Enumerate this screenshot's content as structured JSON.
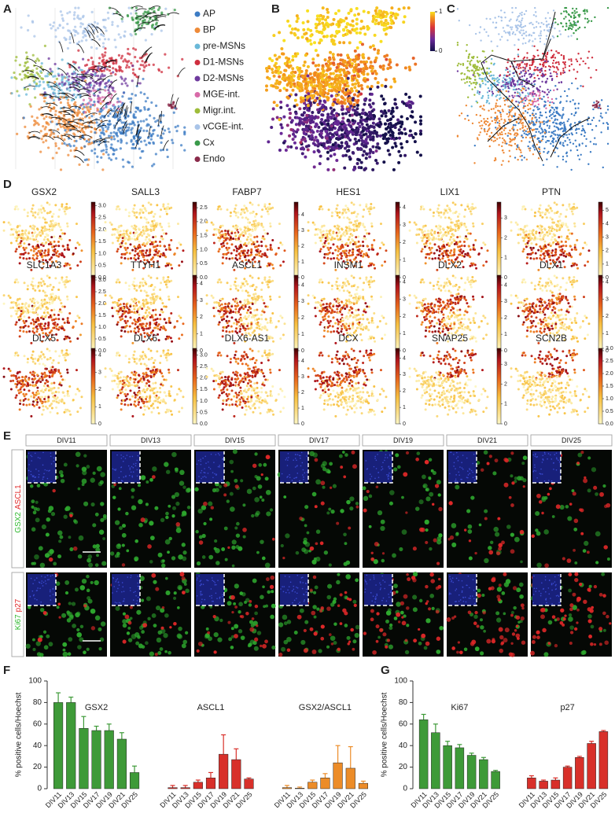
{
  "panels": {
    "a": {
      "label": "A",
      "legend": [
        {
          "name": "AP",
          "color": "#3d7cc4"
        },
        {
          "name": "BP",
          "color": "#ee8a38"
        },
        {
          "name": "pre-MSNs",
          "color": "#6ab8d8"
        },
        {
          "name": "D1-MSNs",
          "color": "#cf2e3e"
        },
        {
          "name": "D2-MSNs",
          "color": "#6f3a9e"
        },
        {
          "name": "MGE-int.",
          "color": "#d86aa8"
        },
        {
          "name": "Migr.int.",
          "color": "#9ebc3a"
        },
        {
          "name": "vCGE-int.",
          "color": "#a9c4e8"
        },
        {
          "name": "Cx",
          "color": "#3a9a4a"
        },
        {
          "name": "Endo",
          "color": "#8a2a4a"
        }
      ]
    },
    "b": {
      "label": "B",
      "colorbar": {
        "lim": [
          0,
          1
        ],
        "ticks": [
          0,
          1
        ]
      }
    },
    "c": {
      "label": "C"
    },
    "d": {
      "label": "D",
      "genes": [
        {
          "name": "GSX2",
          "lim": [
            0,
            3.15
          ],
          "ticks": [
            {
              "value": 0,
              "label": "0.0"
            },
            {
              "value": 0.5,
              "label": "0.5"
            },
            {
              "value": 1,
              "label": "1.0"
            },
            {
              "value": 1.5,
              "label": "1.5"
            },
            {
              "value": 2,
              "label": "2.0"
            },
            {
              "value": 2.5,
              "label": "2.5"
            },
            {
              "value": 3,
              "label": "3.0"
            }
          ]
        },
        {
          "name": "SALL3",
          "lim": [
            0,
            2.7
          ],
          "ticks": [
            {
              "value": 0,
              "label": "0.0"
            },
            {
              "value": 0.5,
              "label": "0.5"
            },
            {
              "value": 1,
              "label": "1.0"
            },
            {
              "value": 1.5,
              "label": "1.5"
            },
            {
              "value": 2,
              "label": "2.0"
            },
            {
              "value": 2.5,
              "label": "2.5"
            }
          ]
        },
        {
          "name": "FABP7",
          "lim": [
            0,
            4.8
          ],
          "ticks": [
            0,
            1,
            2,
            3,
            4
          ]
        },
        {
          "name": "HES1",
          "lim": [
            0,
            4.3
          ],
          "ticks": [
            0,
            1,
            2,
            3,
            4
          ]
        },
        {
          "name": "LIX1",
          "lim": [
            0,
            3.8
          ],
          "ticks": [
            0,
            1,
            2,
            3
          ]
        },
        {
          "name": "PTN",
          "lim": [
            0,
            5.6
          ],
          "ticks": [
            0,
            1,
            2,
            3,
            4,
            5
          ]
        },
        {
          "name": "SLC1A3",
          "lim": [
            0,
            3.2
          ],
          "ticks": [
            {
              "value": 0,
              "label": "0.0"
            },
            {
              "value": 0.5,
              "label": "0.5"
            },
            {
              "value": 1,
              "label": "1.0"
            },
            {
              "value": 1.5,
              "label": "1.5"
            },
            {
              "value": 2,
              "label": "2.0"
            },
            {
              "value": 2.5,
              "label": "2.5"
            },
            {
              "value": 3,
              "label": "3.0"
            }
          ]
        },
        {
          "name": "TTYH1",
          "lim": [
            0,
            4.5
          ],
          "ticks": [
            0,
            1,
            2,
            3,
            4
          ]
        },
        {
          "name": "ASCL1",
          "lim": [
            0,
            4.6
          ],
          "ticks": [
            0,
            1,
            2,
            3,
            4
          ]
        },
        {
          "name": "INSM1",
          "lim": [
            0,
            4.4
          ],
          "ticks": [
            0,
            1,
            2,
            3,
            4
          ]
        },
        {
          "name": "DLX2",
          "lim": [
            0,
            4.6
          ],
          "ticks": [
            0,
            1,
            2,
            3,
            4
          ]
        },
        {
          "name": "DLX1",
          "lim": [
            0,
            4.4
          ],
          "ticks": [
            0,
            1,
            2,
            3,
            4
          ]
        },
        {
          "name": "DLX5",
          "lim": [
            0,
            4.4
          ],
          "ticks": [
            0,
            1,
            2,
            3,
            4
          ]
        },
        {
          "name": "DLX6",
          "lim": [
            0,
            3.3
          ],
          "ticks": [
            {
              "value": 0,
              "label": "0.0"
            },
            {
              "value": 0.5,
              "label": "0.5"
            },
            {
              "value": 1,
              "label": "1.0"
            },
            {
              "value": 1.5,
              "label": "1.5"
            },
            {
              "value": 2,
              "label": "2.0"
            },
            {
              "value": 2.5,
              "label": "2.5"
            },
            {
              "value": 3,
              "label": "3.0"
            }
          ]
        },
        {
          "name": "DLX6-AS1",
          "lim": [
            0,
            4.8
          ],
          "ticks": [
            0,
            1,
            2,
            3,
            4
          ]
        },
        {
          "name": "DCX",
          "lim": [
            0,
            4.6
          ],
          "ticks": [
            0,
            1,
            2,
            3,
            4
          ]
        },
        {
          "name": "SNAP25",
          "lim": [
            0,
            3.8
          ],
          "ticks": [
            0,
            1,
            2,
            3
          ]
        },
        {
          "name": "SCN2B",
          "lim": [
            0,
            3.0
          ],
          "ticks": [
            {
              "value": 0,
              "label": "0.0"
            },
            {
              "value": 0.5,
              "label": "0.5"
            },
            {
              "value": 1,
              "label": "1.0"
            },
            {
              "value": 1.5,
              "label": "1.5"
            },
            {
              "value": 2,
              "label": "2.0"
            },
            {
              "value": 2.5,
              "label": "2.5"
            },
            {
              "value": 3,
              "label": "3.0"
            }
          ]
        }
      ]
    },
    "e": {
      "label": "E",
      "columns": [
        "DIV11",
        "DIV13",
        "DIV15",
        "DIV17",
        "DIV19",
        "DIV21",
        "DIV25"
      ],
      "rows": [
        {
          "stains": [
            {
              "name": "GSX2",
              "color": "#2fb82f"
            },
            {
              "name": "ASCL1",
              "color": "#e02828"
            }
          ]
        },
        {
          "stains": [
            {
              "name": "Ki67",
              "color": "#2fb82f"
            },
            {
              "name": "p27",
              "color": "#e02828"
            }
          ]
        }
      ]
    }
  },
  "chart_data": [
    {
      "type": "bar",
      "panel": "F",
      "y_label": "% positive cells/Hoechst",
      "categories": [
        "DIV11",
        "DIV13",
        "DIV15",
        "DIV17",
        "DIV19",
        "DIV21",
        "DIV25"
      ],
      "ylim": [
        0,
        100
      ],
      "yticks": [
        0,
        20,
        40,
        60,
        80,
        100
      ],
      "series": [
        {
          "name": "GSX2",
          "color": "#3e9a38",
          "values": [
            80,
            80,
            56,
            54,
            54,
            46,
            15
          ],
          "errors": [
            9,
            5,
            11,
            4,
            6,
            6,
            6
          ]
        },
        {
          "name": "ASCL1",
          "color": "#d8302a",
          "values": [
            1,
            1,
            6,
            10,
            32,
            27,
            9
          ],
          "errors": [
            2,
            2,
            2,
            5,
            18,
            10,
            1
          ]
        },
        {
          "name": "GSX2/ASCL1",
          "color": "#ec8c28",
          "values": [
            1,
            0.5,
            6,
            10,
            24,
            19,
            5
          ],
          "errors": [
            2,
            1,
            2,
            4,
            16,
            20,
            2
          ]
        }
      ]
    },
    {
      "type": "bar",
      "panel": "G",
      "y_label": "% positive cells/Hoechst",
      "categories": [
        "DIV11",
        "DIV13",
        "DIV15",
        "DIV17",
        "DIV19",
        "DIV21",
        "DIV25"
      ],
      "ylim": [
        0,
        100
      ],
      "yticks": [
        0,
        20,
        40,
        60,
        80,
        100
      ],
      "series": [
        {
          "name": "Ki67",
          "color": "#3e9a38",
          "values": [
            64,
            52,
            40,
            38,
            31,
            27,
            16
          ],
          "errors": [
            5,
            8,
            4,
            3,
            2,
            2,
            1
          ]
        },
        {
          "name": "p27",
          "color": "#d8302a",
          "values": [
            10,
            7,
            8,
            20,
            29,
            42,
            53
          ],
          "errors": [
            2,
            1,
            2,
            1,
            1,
            2,
            1
          ]
        }
      ]
    }
  ]
}
